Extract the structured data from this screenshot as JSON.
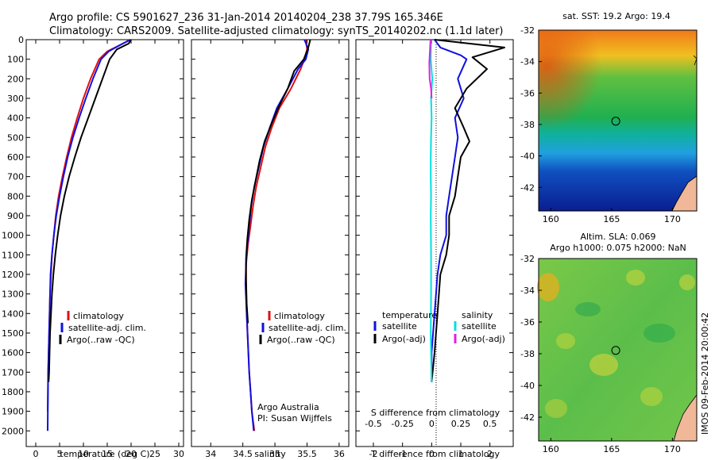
{
  "header": {
    "line1": "Argo profile: CS 5901627_236 31-Jan-2014 20140204_238 37.79S 165.346E",
    "line2": "Climatology: CARS2009. Satellite-adjusted climatology: synTS_20140202.nc (1.1d later)"
  },
  "side_stamp": "IMOS 09-Feb-2014 20:00:42",
  "credit": {
    "line1": "Argo Australia",
    "line2": "PI: Susan Wijffels"
  },
  "colors": {
    "climatology": "#e01010",
    "satellite": "#1010e0",
    "argo": "#000000",
    "sat_salinity": "#00e0e0",
    "argo_salinity": "#e020e0"
  },
  "chart_data": [
    {
      "type": "line",
      "name": "temperature-profile",
      "xlabel": "temperature (deg C)",
      "ylabel": "",
      "xlim": [
        -2,
        31
      ],
      "ylim": [
        2080,
        0
      ],
      "xticks": [
        0,
        5,
        10,
        15,
        20,
        25,
        30
      ],
      "yticks": [
        0,
        100,
        200,
        300,
        400,
        500,
        600,
        700,
        800,
        900,
        1000,
        1100,
        1200,
        1300,
        1400,
        1500,
        1600,
        1700,
        1800,
        1900,
        2000
      ],
      "legend": [
        "climatology",
        "satellite-adj. clim.",
        "Argo(..raw -QC)"
      ],
      "series": [
        {
          "name": "climatology",
          "color": "#e01010",
          "x": [
            19.8,
            17.5,
            15.0,
            13.3,
            11.5,
            10.0,
            8.7,
            7.5,
            6.5,
            5.6,
            4.8,
            4.2,
            3.8,
            3.4,
            3.2,
            3.0,
            2.9,
            2.8,
            2.7,
            2.6,
            2.5
          ],
          "y": [
            0,
            30,
            60,
            100,
            200,
            300,
            400,
            500,
            600,
            700,
            800,
            900,
            1000,
            1100,
            1200,
            1300,
            1400,
            1500,
            1600,
            1700,
            1900
          ]
        },
        {
          "name": "satellite-adj. clim.",
          "color": "#1010e0",
          "x": [
            19.9,
            17.5,
            15.3,
            13.7,
            12.0,
            10.5,
            9.1,
            7.8,
            6.7,
            5.8,
            5.0,
            4.3,
            3.8,
            3.4,
            3.1,
            3.0,
            2.9,
            2.8,
            2.7,
            2.6,
            2.5
          ],
          "y": [
            0,
            30,
            60,
            100,
            200,
            300,
            400,
            500,
            600,
            700,
            800,
            900,
            1000,
            1100,
            1200,
            1300,
            1400,
            1500,
            1600,
            1700,
            2000
          ]
        },
        {
          "name": "Argo(..raw -QC)",
          "color": "#000000",
          "x": [
            20.0,
            19.5,
            17.0,
            15.5,
            14.0,
            12.5,
            11.0,
            9.5,
            8.2,
            7.0,
            6.0,
            5.2,
            4.6,
            4.1,
            3.7,
            3.4,
            3.2,
            3.0,
            2.9,
            2.8,
            2.7
          ],
          "y": [
            0,
            20,
            50,
            100,
            200,
            300,
            400,
            500,
            600,
            700,
            800,
            900,
            1000,
            1100,
            1200,
            1300,
            1400,
            1500,
            1600,
            1700,
            1750
          ]
        }
      ]
    },
    {
      "type": "line",
      "name": "salinity-profile",
      "xlabel": "salinity",
      "ylabel": "",
      "xlim": [
        33.7,
        36.15
      ],
      "ylim": [
        2080,
        0
      ],
      "xticks": [
        34,
        34.5,
        35,
        35.5,
        36
      ],
      "legend": [
        "climatology",
        "satellite-adj. clim.",
        "Argo(..raw -QC)"
      ],
      "series": [
        {
          "name": "climatology",
          "color": "#e01010",
          "x": [
            35.48,
            35.5,
            35.46,
            35.4,
            35.25,
            35.07,
            34.95,
            34.85,
            34.78,
            34.71,
            34.66,
            34.62,
            34.58,
            34.55,
            34.55,
            34.56,
            34.58,
            34.6,
            34.62,
            34.64,
            34.68
          ],
          "y": [
            0,
            50,
            100,
            150,
            250,
            350,
            450,
            550,
            650,
            750,
            850,
            950,
            1050,
            1150,
            1250,
            1400,
            1550,
            1700,
            1800,
            1900,
            2000
          ]
        },
        {
          "name": "satellite-adj. clim.",
          "color": "#1010e0",
          "x": [
            35.46,
            35.52,
            35.48,
            35.36,
            35.2,
            35.03,
            34.92,
            34.82,
            34.75,
            34.68,
            34.63,
            34.6,
            34.57,
            34.55,
            34.54,
            34.56,
            34.58,
            34.6,
            34.62,
            34.64,
            34.67
          ],
          "y": [
            0,
            50,
            100,
            150,
            250,
            350,
            450,
            550,
            650,
            750,
            850,
            950,
            1050,
            1150,
            1250,
            1400,
            1550,
            1700,
            1800,
            1900,
            2000
          ]
        },
        {
          "name": "Argo(..raw -QC)",
          "color": "#000000",
          "x": [
            35.55,
            35.52,
            35.45,
            35.3,
            35.2,
            35.08,
            34.96,
            34.84,
            34.76,
            34.7,
            34.64,
            34.6,
            34.57,
            34.55,
            34.55,
            34.56,
            34.58
          ],
          "y": [
            0,
            40,
            100,
            160,
            250,
            330,
            420,
            520,
            620,
            720,
            820,
            920,
            1020,
            1120,
            1220,
            1350,
            1450
          ]
        }
      ]
    },
    {
      "type": "line",
      "name": "difference-profile",
      "xlabel_bottom": "T difference from climatology",
      "xlabel_top": "S difference from climatology",
      "xlim": [
        -2.6,
        2.8
      ],
      "ylim": [
        2080,
        0
      ],
      "xticks": [
        -2,
        -1,
        0,
        1,
        2
      ],
      "x2ticks": [
        -0.5,
        -0.25,
        0,
        0.25,
        0.5
      ],
      "legend_left_title": "temperature",
      "legend_right_title": "salinity",
      "legend": [
        "satellite",
        "Argo(-adj)",
        "satellite",
        "Argo(-adj)"
      ],
      "series": [
        {
          "name": "temperature satellite",
          "color": "#1010e0",
          "x": [
            0.1,
            0.3,
            1.0,
            1.2,
            0.9,
            1.1,
            0.8,
            0.9,
            0.8,
            0.7,
            0.6,
            0.5,
            0.5,
            0.3,
            0.2,
            0.1,
            0.0,
            0.0,
            0.0
          ],
          "y": [
            0,
            40,
            80,
            100,
            200,
            300,
            400,
            500,
            600,
            700,
            800,
            900,
            1000,
            1100,
            1200,
            1400,
            1600,
            1700,
            1750
          ]
        },
        {
          "name": "temperature Argo(-adj)",
          "color": "#000000",
          "x": [
            0.1,
            2.5,
            1.4,
            1.9,
            1.2,
            0.8,
            1.1,
            1.3,
            1.0,
            0.9,
            0.8,
            0.6,
            0.6,
            0.5,
            0.3,
            0.2,
            0.1,
            0.0
          ],
          "y": [
            0,
            40,
            90,
            150,
            250,
            350,
            450,
            520,
            600,
            700,
            800,
            900,
            1000,
            1100,
            1200,
            1400,
            1600,
            1750
          ]
        },
        {
          "name": "salinity satellite",
          "color": "#00e0e0",
          "x": [
            -0.02,
            -0.03,
            0.02,
            -0.02,
            0.0,
            -0.02,
            -0.03,
            -0.03,
            -0.02,
            -0.03,
            -0.02,
            -0.02,
            -0.03,
            -0.02,
            0.0
          ],
          "y": [
            0,
            100,
            200,
            300,
            400,
            500,
            600,
            700,
            800,
            900,
            1100,
            1300,
            1500,
            1600,
            1750
          ]
        },
        {
          "name": "salinity Argo(-adj)",
          "color": "#e020e0",
          "x": [
            -0.04,
            -0.08,
            -0.07,
            -0.02,
            0.0
          ],
          "y": [
            0,
            120,
            200,
            250,
            300
          ]
        }
      ]
    },
    {
      "type": "heatmap",
      "name": "sst-map",
      "title": "sat. SST: 19.2  Argo: 19.4",
      "xlim": [
        159,
        172
      ],
      "ylim": [
        -43.5,
        -32
      ],
      "xticks": [
        160,
        165,
        170
      ],
      "yticks": [
        -32,
        -34,
        -36,
        -38,
        -40,
        -42
      ],
      "marker": {
        "lon": 165.346,
        "lat": -37.79
      }
    },
    {
      "type": "heatmap",
      "name": "sla-map",
      "title_line1": "Altim. SLA: 0.069",
      "title_line2": "Argo h1000: 0.075  h2000: NaN",
      "xlim": [
        159,
        172
      ],
      "ylim": [
        -43.5,
        -32
      ],
      "xticks": [
        160,
        165,
        170
      ],
      "yticks": [
        -32,
        -34,
        -36,
        -38,
        -40,
        -42
      ],
      "marker": {
        "lon": 165.346,
        "lat": -37.79
      }
    }
  ]
}
